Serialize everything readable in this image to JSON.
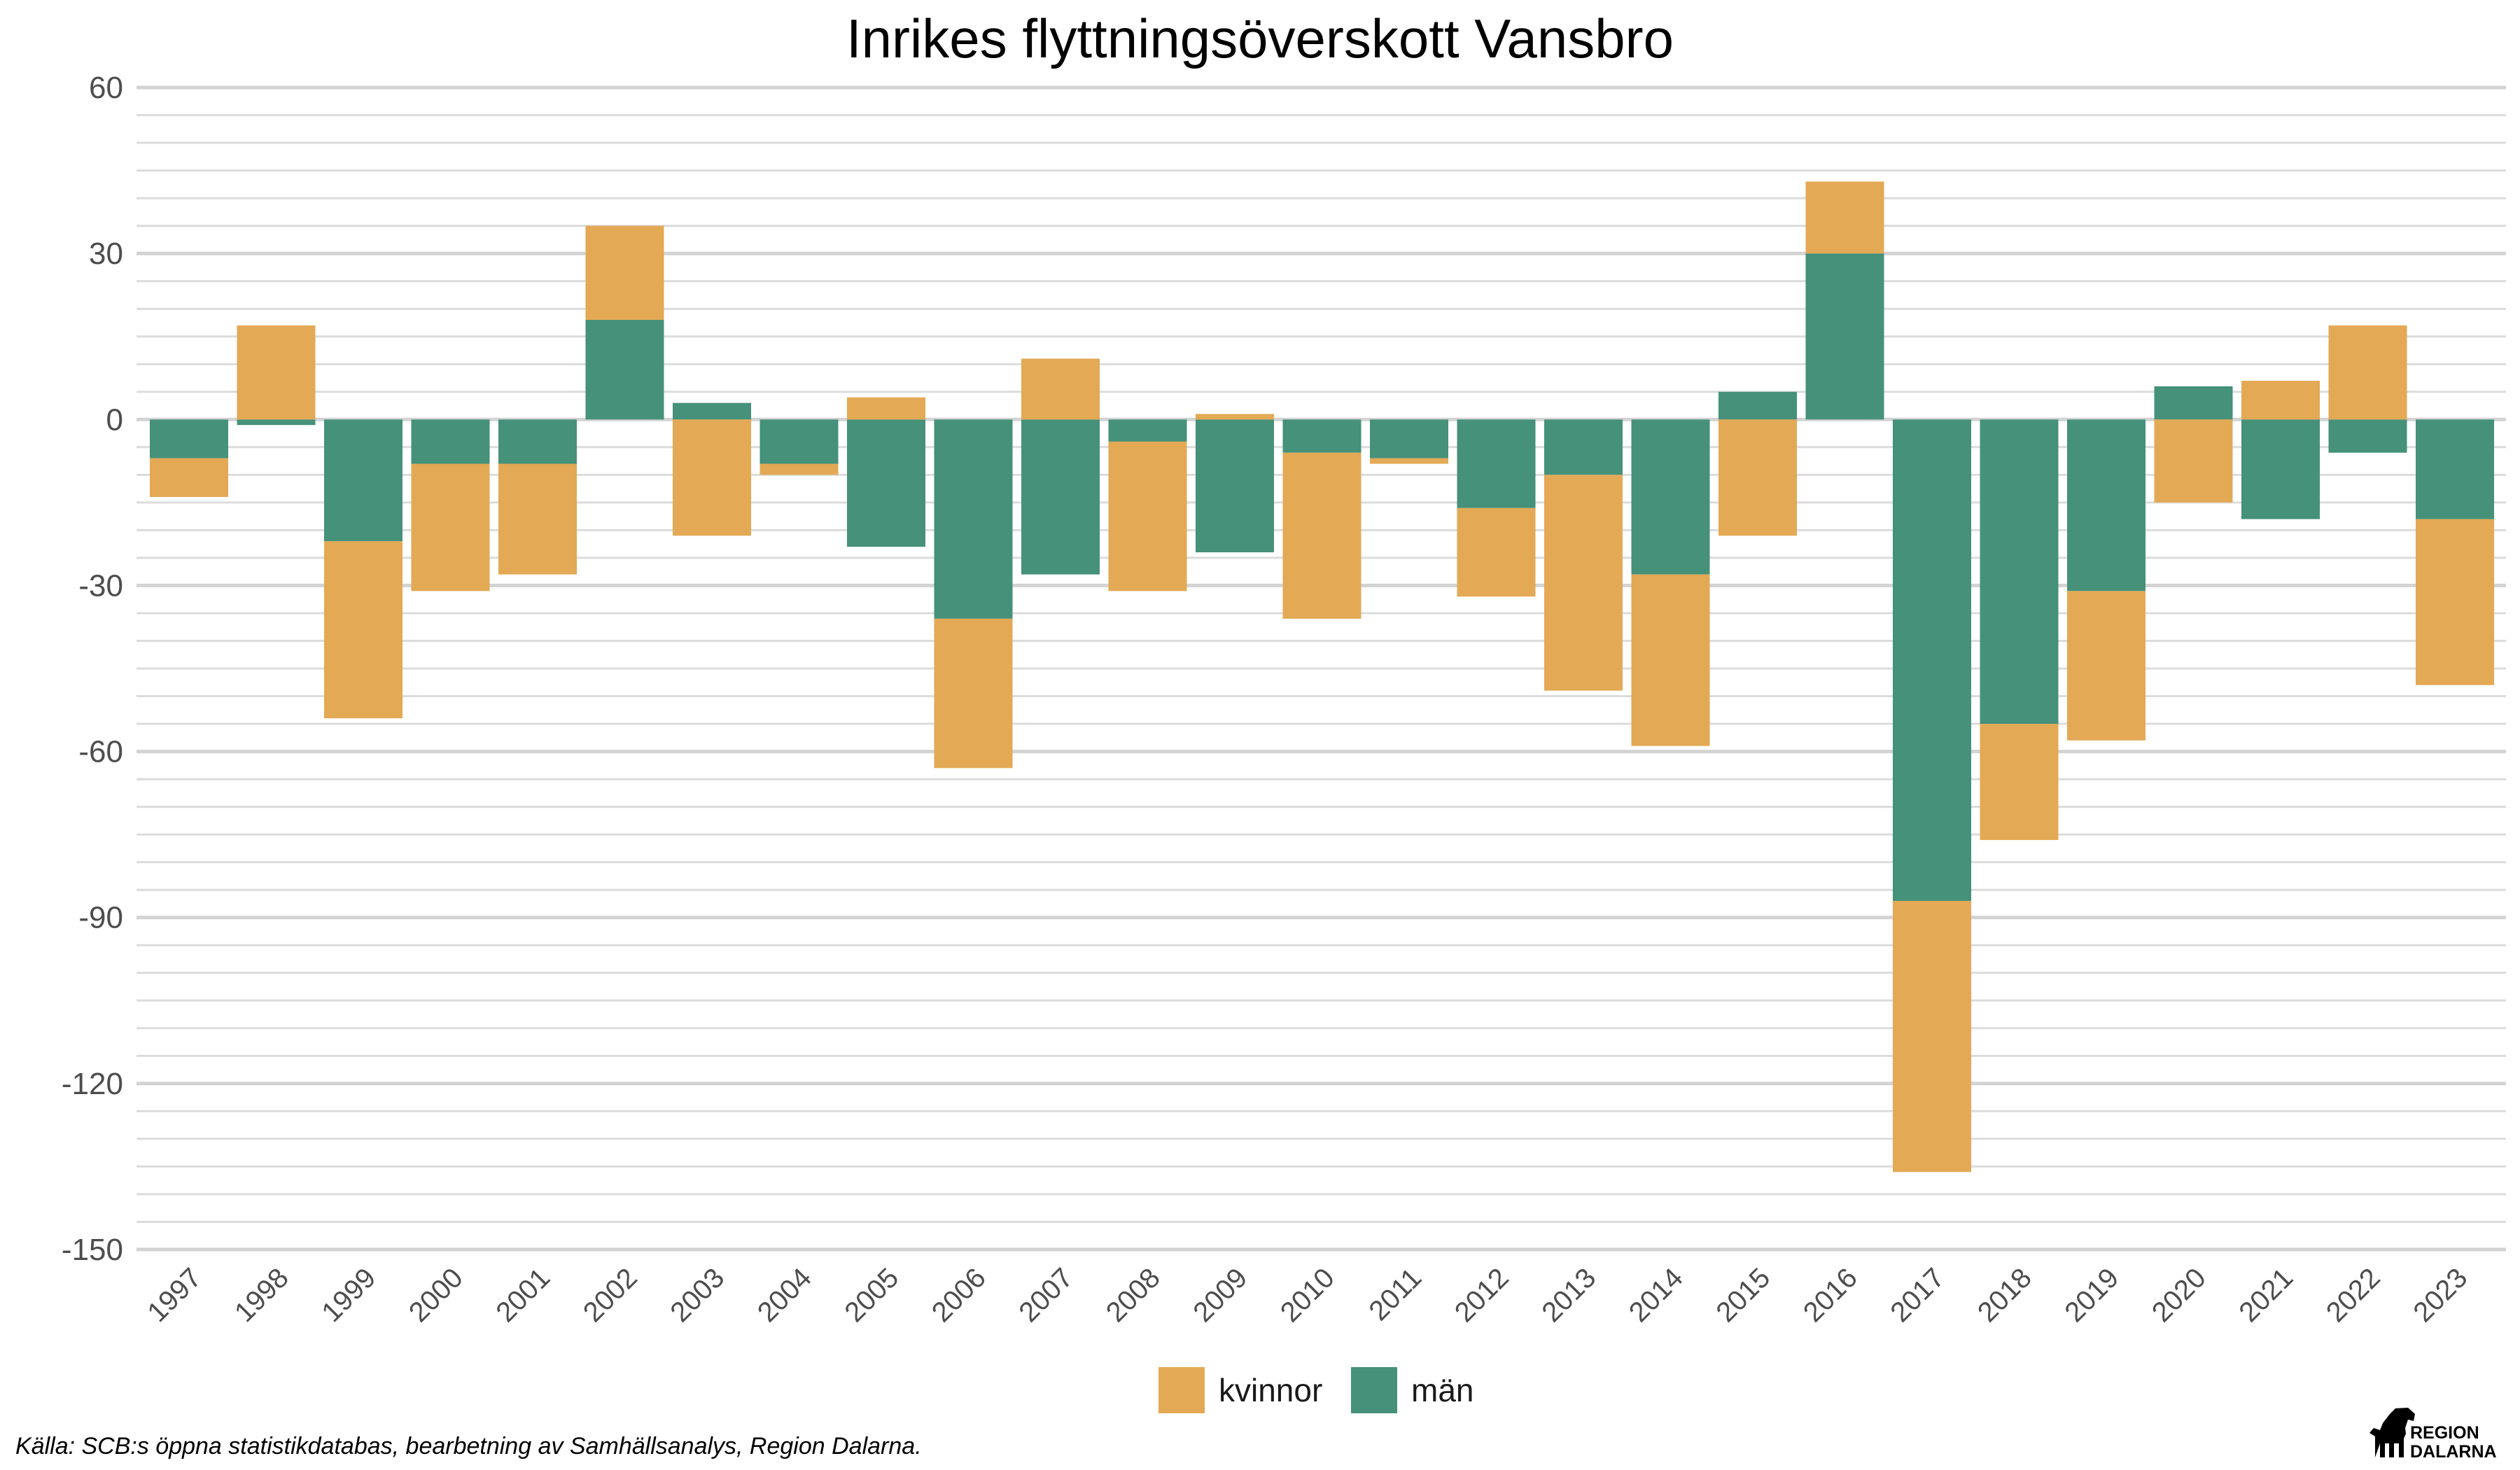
{
  "chart_data": {
    "type": "bar",
    "stacked": true,
    "title": "Inrikes flyttningsöverskott Vansbro",
    "xlabel": "",
    "ylabel": "",
    "ylim": [
      -150,
      60
    ],
    "yticks": [
      60,
      30,
      0,
      -30,
      -60,
      -90,
      -120,
      -150
    ],
    "grid": true,
    "legend_position": "bottom",
    "categories": [
      "1997",
      "1998",
      "1999",
      "2000",
      "2001",
      "2002",
      "2003",
      "2004",
      "2005",
      "2006",
      "2007",
      "2008",
      "2009",
      "2010",
      "2011",
      "2012",
      "2013",
      "2014",
      "2015",
      "2016",
      "2017",
      "2018",
      "2019",
      "2020",
      "2021",
      "2022",
      "2023"
    ],
    "series": [
      {
        "name": "kvinnor",
        "color": "#E3A955",
        "values": [
          -7,
          17,
          -32,
          -23,
          -20,
          17,
          -21,
          -2,
          4,
          -27,
          11,
          -27,
          1,
          -30,
          -1,
          -16,
          -39,
          -31,
          -21,
          13,
          -49,
          -21,
          -27,
          -15,
          7,
          17,
          -30
        ]
      },
      {
        "name": "män",
        "color": "#45917A",
        "values": [
          -7,
          -1,
          -22,
          -8,
          -8,
          18,
          3,
          -8,
          -23,
          -36,
          -28,
          -4,
          -24,
          -6,
          -7,
          -16,
          -10,
          -28,
          5,
          30,
          -87,
          -55,
          -31,
          6,
          -18,
          -6,
          -18
        ]
      }
    ],
    "source": "Källa: SCB:s öppna statistikdatabas, bearbetning av Samhällsanalys, Region Dalarna."
  },
  "logo": {
    "line1": "REGION",
    "line2": "DALARNA"
  }
}
